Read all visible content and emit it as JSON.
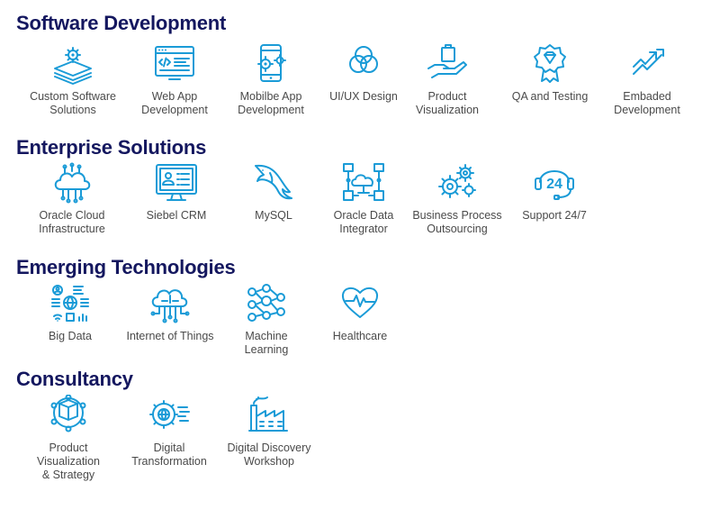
{
  "sections": [
    {
      "title": "Software Development",
      "items": [
        {
          "label": "Custom Software\nSolutions",
          "icon": "layers-gear-icon"
        },
        {
          "label": "Web App\nDevelopment",
          "icon": "browser-code-icon"
        },
        {
          "label": "Mobilbe App\nDevelopment",
          "icon": "mobile-gear-icon"
        },
        {
          "label": "UI/UX Design",
          "icon": "venn-circles-icon"
        },
        {
          "label": "Product\nVisualization",
          "icon": "hand-bag-icon"
        },
        {
          "label": "QA and Testing",
          "icon": "quality-badge-icon"
        },
        {
          "label": "Embaded\nDevelopment",
          "icon": "trend-arrow-icon"
        }
      ]
    },
    {
      "title": "Enterprise Solutions",
      "items": [
        {
          "label": "Oracle Cloud\nInfrastructure",
          "icon": "cloud-network-icon"
        },
        {
          "label": "Siebel CRM",
          "icon": "monitor-contact-icon"
        },
        {
          "label": "MySQL",
          "icon": "dolphin-icon"
        },
        {
          "label": "Oracle Data\nIntegrator",
          "icon": "data-integration-icon"
        },
        {
          "label": "Business Process\nOutsourcing",
          "icon": "gears-icon"
        },
        {
          "label": "Support 24/7",
          "icon": "headset-24-icon"
        }
      ]
    },
    {
      "title": "Emerging Technologies",
      "items": [
        {
          "label": "Big Data",
          "icon": "big-data-grid-icon"
        },
        {
          "label": "Internet of Things",
          "icon": "cloud-circuit-icon"
        },
        {
          "label": "Machine\nLearning",
          "icon": "neural-network-icon"
        },
        {
          "label": "Healthcare",
          "icon": "heart-pulse-icon"
        }
      ]
    },
    {
      "title": "Consultancy",
      "items": [
        {
          "label": "Product\nVisualization\n& Strategy",
          "icon": "box-network-icon"
        },
        {
          "label": "Digital\nTransformation",
          "icon": "globe-gear-icon"
        },
        {
          "label": "Digital Discovery\nWorkshop",
          "icon": "factory-icon"
        }
      ]
    }
  ]
}
